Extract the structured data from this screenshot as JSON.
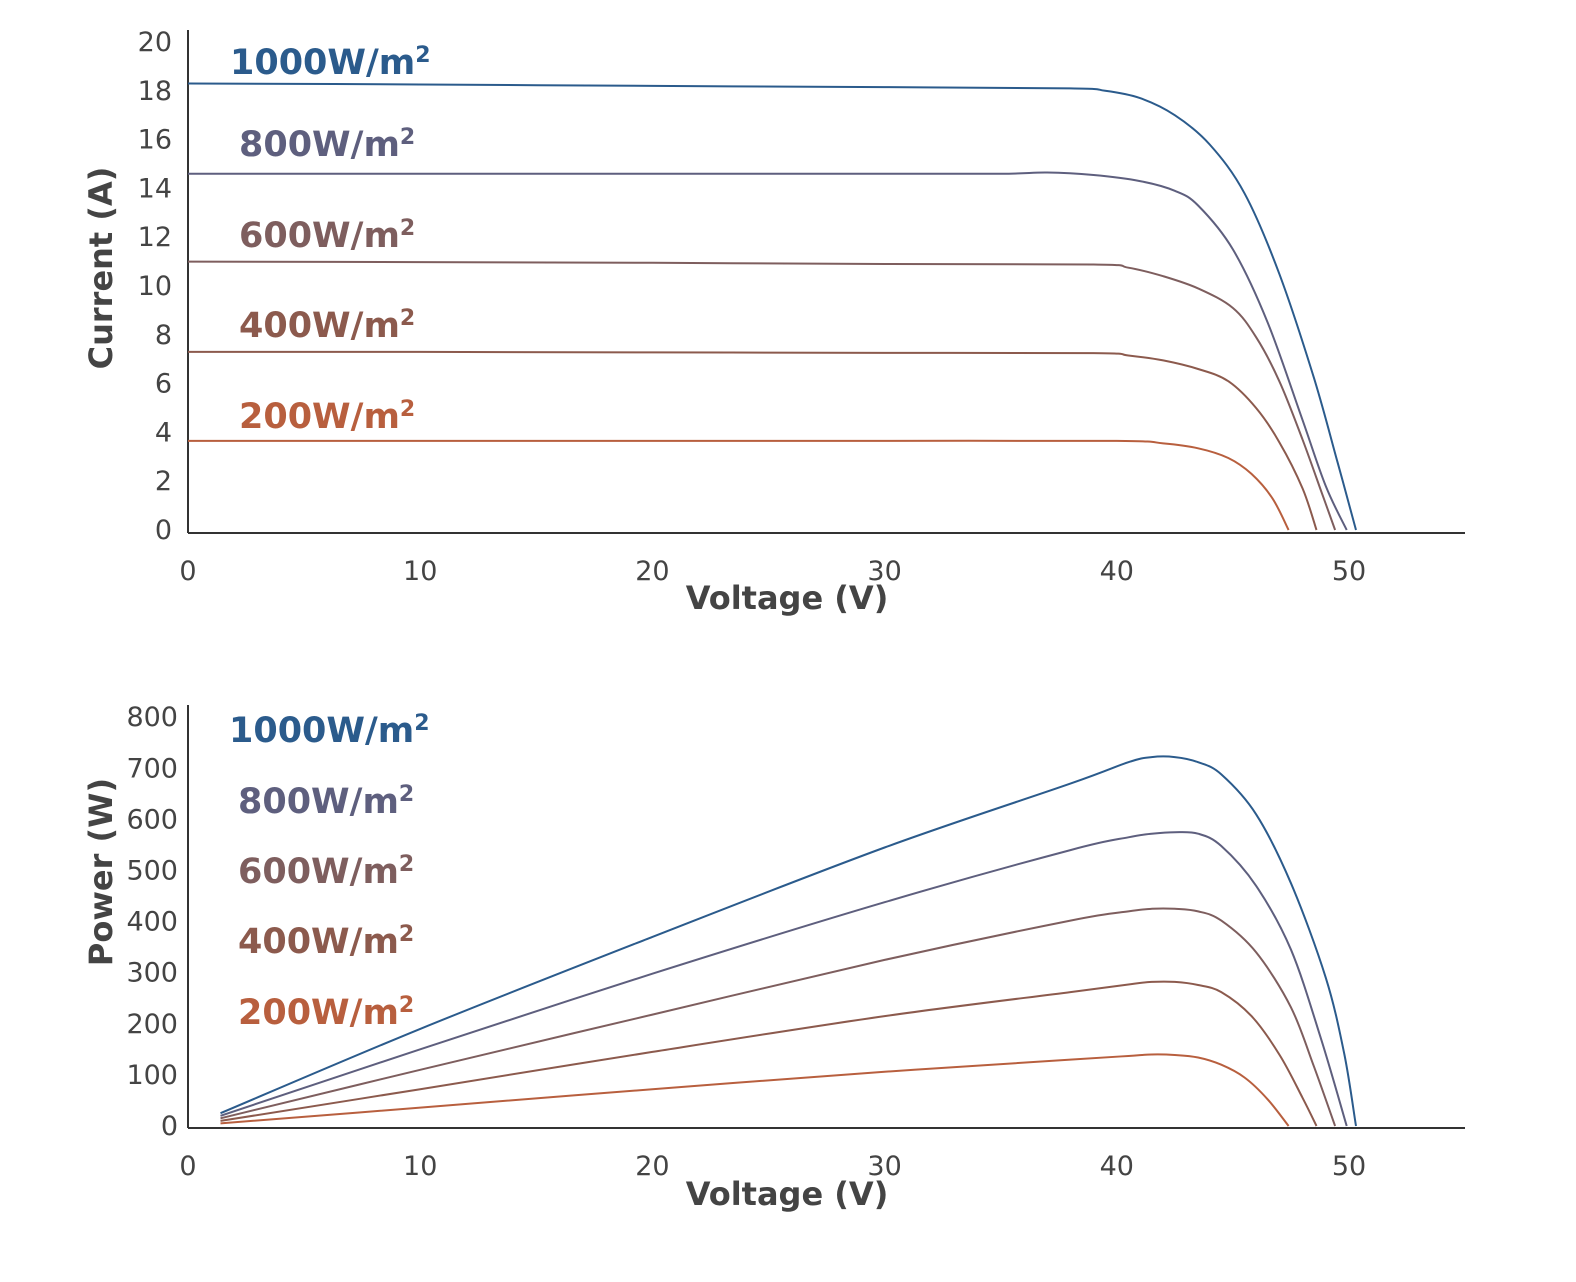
{
  "chart_data": [
    {
      "type": "line",
      "xlabel": "Voltage (V)",
      "ylabel": "Current (A)",
      "xlim": [
        0,
        55
      ],
      "ylim": [
        0,
        20
      ],
      "xticks": [
        0,
        10,
        20,
        30,
        40,
        50
      ],
      "yticks": [
        0,
        2,
        4,
        6,
        8,
        10,
        12,
        14,
        16,
        18,
        20
      ],
      "grid": false,
      "legend": "inline-left",
      "series": [
        {
          "name": "1000W/m²",
          "color": "#2b5b8c",
          "points": [
            [
              0,
              18.3
            ],
            [
              10,
              18.26
            ],
            [
              20,
              18.2
            ],
            [
              30,
              18.15
            ],
            [
              38,
              18.1
            ],
            [
              39.5,
              18.0
            ],
            [
              41,
              17.7
            ],
            [
              42.5,
              17.0
            ],
            [
              44,
              15.8
            ],
            [
              45.5,
              13.8
            ],
            [
              47,
              10.5
            ],
            [
              48.5,
              6.2
            ],
            [
              49.5,
              2.8
            ],
            [
              50.3,
              0
            ]
          ]
        },
        {
          "name": "800W/m²",
          "color": "#5e5f7e",
          "points": [
            [
              0,
              14.6
            ],
            [
              10,
              14.6
            ],
            [
              20,
              14.6
            ],
            [
              30,
              14.6
            ],
            [
              35,
              14.6
            ],
            [
              37,
              14.65
            ],
            [
              39,
              14.55
            ],
            [
              41,
              14.3
            ],
            [
              42.5,
              13.9
            ],
            [
              43.5,
              13.3
            ],
            [
              45,
              11.5
            ],
            [
              46.5,
              8.5
            ],
            [
              48,
              4.5
            ],
            [
              49,
              1.8
            ],
            [
              49.9,
              0
            ]
          ]
        },
        {
          "name": "600W/m²",
          "color": "#7e5e5e",
          "points": [
            [
              0,
              11.0
            ],
            [
              10,
              10.98
            ],
            [
              20,
              10.95
            ],
            [
              30,
              10.9
            ],
            [
              39,
              10.88
            ],
            [
              40.5,
              10.75
            ],
            [
              42,
              10.4
            ],
            [
              43.5,
              9.9
            ],
            [
              45,
              9.1
            ],
            [
              46,
              7.9
            ],
            [
              47,
              6.1
            ],
            [
              48,
              3.7
            ],
            [
              48.8,
              1.6
            ],
            [
              49.4,
              0
            ]
          ]
        },
        {
          "name": "400W/m²",
          "color": "#8c5a4d",
          "points": [
            [
              0,
              7.3
            ],
            [
              10,
              7.3
            ],
            [
              20,
              7.28
            ],
            [
              30,
              7.26
            ],
            [
              39,
              7.25
            ],
            [
              40.5,
              7.15
            ],
            [
              42,
              6.95
            ],
            [
              43.5,
              6.6
            ],
            [
              44.8,
              6.1
            ],
            [
              46,
              5.0
            ],
            [
              47,
              3.6
            ],
            [
              48,
              1.7
            ],
            [
              48.6,
              0
            ]
          ]
        },
        {
          "name": "200W/m²",
          "color": "#b85f3e",
          "points": [
            [
              0,
              3.65
            ],
            [
              10,
              3.65
            ],
            [
              20,
              3.65
            ],
            [
              30,
              3.65
            ],
            [
              40,
              3.65
            ],
            [
              42,
              3.55
            ],
            [
              43.5,
              3.35
            ],
            [
              44.8,
              2.95
            ],
            [
              45.8,
              2.3
            ],
            [
              46.7,
              1.3
            ],
            [
              47.4,
              0
            ]
          ]
        }
      ]
    },
    {
      "type": "line",
      "xlabel": "Voltage (V)",
      "ylabel": "Power (W)",
      "xlim": [
        0,
        55
      ],
      "ylim": [
        0,
        800
      ],
      "xticks": [
        0,
        10,
        20,
        30,
        40,
        50
      ],
      "yticks": [
        0,
        100,
        200,
        300,
        400,
        500,
        600,
        700,
        800
      ],
      "grid": false,
      "legend": "top-left",
      "series": [
        {
          "name": "1000W/m²",
          "color": "#2b5b8c",
          "points": [
            [
              1.4,
              25
            ],
            [
              10,
              190
            ],
            [
              20,
              370
            ],
            [
              30,
              545
            ],
            [
              38,
              670
            ],
            [
              40.5,
              712
            ],
            [
              41.5,
              722
            ],
            [
              42.5,
              722
            ],
            [
              43.5,
              712
            ],
            [
              44.5,
              688
            ],
            [
              46,
              610
            ],
            [
              47.5,
              475
            ],
            [
              49,
              290
            ],
            [
              49.8,
              140
            ],
            [
              50.3,
              0
            ]
          ]
        },
        {
          "name": "800W/m²",
          "color": "#5e5f7e",
          "points": [
            [
              1.4,
              20
            ],
            [
              10,
              150
            ],
            [
              20,
              298
            ],
            [
              30,
              438
            ],
            [
              38,
              540
            ],
            [
              40.5,
              565
            ],
            [
              41.5,
              572
            ],
            [
              42.5,
              575
            ],
            [
              43.5,
              572
            ],
            [
              44.5,
              548
            ],
            [
              46,
              470
            ],
            [
              47.5,
              345
            ],
            [
              48.8,
              170
            ],
            [
              49.9,
              0
            ]
          ]
        },
        {
          "name": "600W/m²",
          "color": "#7e5e5e",
          "points": [
            [
              1.4,
              15
            ],
            [
              10,
              110
            ],
            [
              20,
              218
            ],
            [
              30,
              325
            ],
            [
              38,
              402
            ],
            [
              40.5,
              420
            ],
            [
              41.5,
              425
            ],
            [
              42.5,
              425
            ],
            [
              43.5,
              420
            ],
            [
              44.5,
              402
            ],
            [
              46,
              340
            ],
            [
              47.5,
              232
            ],
            [
              48.5,
              115
            ],
            [
              49.4,
              0
            ]
          ]
        },
        {
          "name": "400W/m²",
          "color": "#8c5a4d",
          "points": [
            [
              1.4,
              10
            ],
            [
              10,
              72
            ],
            [
              20,
              145
            ],
            [
              30,
              215
            ],
            [
              38,
              262
            ],
            [
              40.5,
              277
            ],
            [
              41.5,
              282
            ],
            [
              42.5,
              282
            ],
            [
              43.5,
              276
            ],
            [
              44.5,
              262
            ],
            [
              45.8,
              215
            ],
            [
              47,
              140
            ],
            [
              48,
              55
            ],
            [
              48.6,
              0
            ]
          ]
        },
        {
          "name": "200W/m²",
          "color": "#b85f3e",
          "points": [
            [
              1.4,
              5
            ],
            [
              10,
              36
            ],
            [
              20,
              72
            ],
            [
              30,
              106
            ],
            [
              38,
              130
            ],
            [
              40.5,
              137
            ],
            [
              41.5,
              140
            ],
            [
              42.5,
              139
            ],
            [
              43.5,
              134
            ],
            [
              44.5,
              120
            ],
            [
              45.5,
              95
            ],
            [
              46.5,
              52
            ],
            [
              47.4,
              0
            ]
          ]
        }
      ]
    }
  ]
}
